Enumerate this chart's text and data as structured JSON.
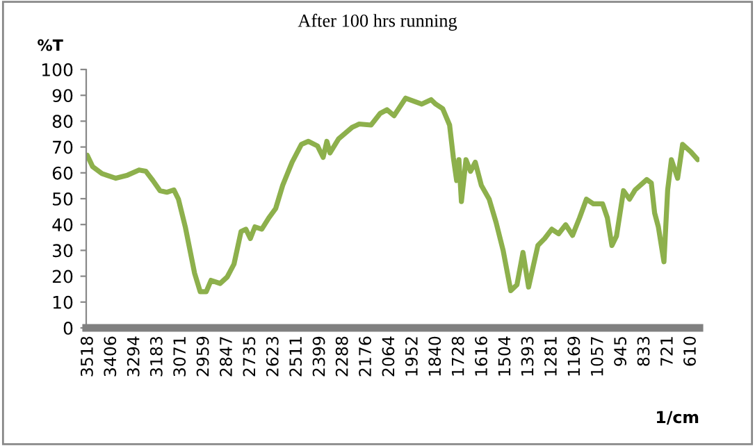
{
  "chart_data": {
    "type": "line",
    "title": "After 100 hrs running",
    "xlabel": "1/cm",
    "ylabel": "%T",
    "xlim": [
      3528,
      570
    ],
    "ylim": [
      0,
      100
    ],
    "xticks": [
      3518,
      3406,
      3294,
      3183,
      3071,
      2959,
      2847,
      2735,
      2623,
      2511,
      2399,
      2288,
      2176,
      2064,
      1952,
      1840,
      1728,
      1616,
      1504,
      1393,
      1281,
      1169,
      1057,
      945,
      833,
      721,
      610
    ],
    "yticks": [
      0,
      10,
      20,
      30,
      40,
      50,
      60,
      70,
      80,
      90,
      100
    ],
    "grid": false,
    "marker": "none",
    "line_style": "solid",
    "series": [
      {
        "color": "#8db04c",
        "x": [
          3523,
          3497,
          3452,
          3385,
          3329,
          3273,
          3240,
          3206,
          3172,
          3139,
          3105,
          3083,
          3050,
          3005,
          2978,
          2949,
          2926,
          2882,
          2848,
          2815,
          2781,
          2758,
          2736,
          2714,
          2681,
          2647,
          2614,
          2580,
          2535,
          2490,
          2456,
          2412,
          2385,
          2367,
          2352,
          2311,
          2245,
          2211,
          2154,
          2110,
          2077,
          2043,
          1987,
          1909,
          1864,
          1842,
          1808,
          1775,
          1757,
          1741,
          1730,
          1718,
          1696,
          1674,
          1651,
          1622,
          1584,
          1551,
          1517,
          1480,
          1450,
          1421,
          1394,
          1349,
          1316,
          1282,
          1249,
          1215,
          1182,
          1148,
          1115,
          1081,
          1037,
          1014,
          992,
          970,
          936,
          907,
          880,
          824,
          802,
          786,
          768,
          741,
          723,
          705,
          675,
          651,
          611,
          578
        ],
        "values": [
          66.8,
          62.4,
          59.7,
          57.9,
          59.1,
          61.1,
          60.6,
          57,
          53.1,
          52.5,
          53.4,
          49.8,
          39.1,
          21.1,
          14,
          14,
          18.4,
          17.2,
          19.7,
          24.7,
          37.3,
          38.2,
          34.6,
          39.1,
          38.2,
          42.6,
          46.2,
          55.2,
          64.1,
          71,
          72.2,
          70.4,
          66,
          72.2,
          67.7,
          73.1,
          77.6,
          78.9,
          78.5,
          83,
          84.4,
          82.1,
          88.9,
          86.6,
          88.3,
          86.6,
          84.8,
          78.5,
          66,
          57,
          65.1,
          48.9,
          65.1,
          60.6,
          64.1,
          55.2,
          49.8,
          40.9,
          30.1,
          14.4,
          16.7,
          29.2,
          15.8,
          31.9,
          34.6,
          38.2,
          36.4,
          39.9,
          35.8,
          42.6,
          49.8,
          48,
          48,
          42.6,
          31.9,
          35.5,
          53.1,
          49.8,
          53.4,
          57.4,
          56.1,
          44.5,
          39.1,
          25.6,
          53.4,
          65.1,
          57.9,
          71,
          68.1,
          65.1
        ]
      }
    ]
  }
}
